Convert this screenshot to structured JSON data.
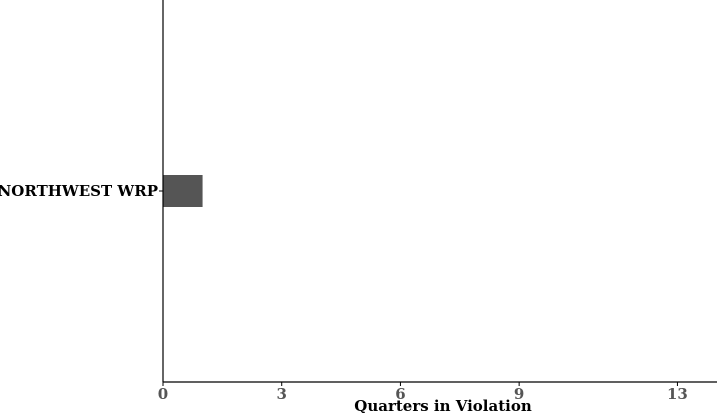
{
  "chart_data": {
    "type": "bar",
    "orientation": "horizontal",
    "categories": [
      "NORTHWEST WRP"
    ],
    "values": [
      1
    ],
    "xlabel": "Quarters in Violation",
    "ylabel": "",
    "xlim": [
      0,
      14
    ],
    "xticks": [
      0,
      3,
      6,
      9,
      13
    ],
    "grid": false,
    "bar_color": "#555555"
  }
}
